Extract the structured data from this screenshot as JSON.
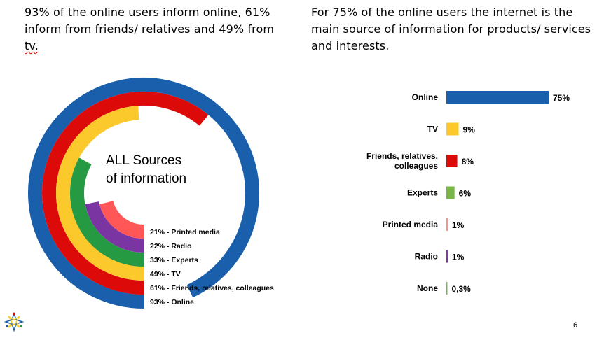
{
  "left_heading": {
    "text_main": "93% of the online users inform online, 61% inform from friends/ relatives and 49% from ",
    "text_flagged": "tv."
  },
  "right_heading": {
    "text": "For 75% of the online users the internet is the main source of information for products/ services and interests."
  },
  "page_number": "6",
  "chart_data": [
    {
      "type": "radial-bar",
      "title": "ALL Sources of information",
      "title_lines": [
        "ALL Sources",
        "of information"
      ],
      "value_max": 100,
      "series": [
        {
          "label": "93% - Online",
          "value": 93,
          "color": "#1a5fac"
        },
        {
          "label": "61% - Friends, relatives, colleagues",
          "value": 61,
          "color": "#dd0a0a"
        },
        {
          "label": "49% - TV",
          "value": 49,
          "color": "#fcc92d"
        },
        {
          "label": "33% - Experts",
          "value": 33,
          "color": "#259a43"
        },
        {
          "label": "22% - Radio",
          "value": 22,
          "color": "#7a35a3"
        },
        {
          "label": "21% - Printed media",
          "value": 21,
          "color": "#ff5757"
        }
      ]
    },
    {
      "type": "bar",
      "orientation": "horizontal",
      "xlim": [
        0,
        75
      ],
      "categories": [
        {
          "label": "Online",
          "value": 75,
          "value_label": "75%",
          "color": "#1a5fac"
        },
        {
          "label": "TV",
          "value": 9,
          "value_label": "9%",
          "color": "#fcc92d"
        },
        {
          "label": "Friends, relatives, colleagues",
          "value": 8,
          "value_label": "8%",
          "color": "#dd0a0a"
        },
        {
          "label": "Experts",
          "value": 6,
          "value_label": "6%",
          "color": "#7ab547"
        },
        {
          "label": "Printed media",
          "value": 1,
          "value_label": "1%",
          "color": "#f0928c"
        },
        {
          "label": "Radio",
          "value": 1,
          "value_label": "1%",
          "color": "#7a35a3"
        },
        {
          "label": "None",
          "value": 0.3,
          "value_label": "0,3%",
          "color": "#7ab547"
        }
      ]
    }
  ]
}
